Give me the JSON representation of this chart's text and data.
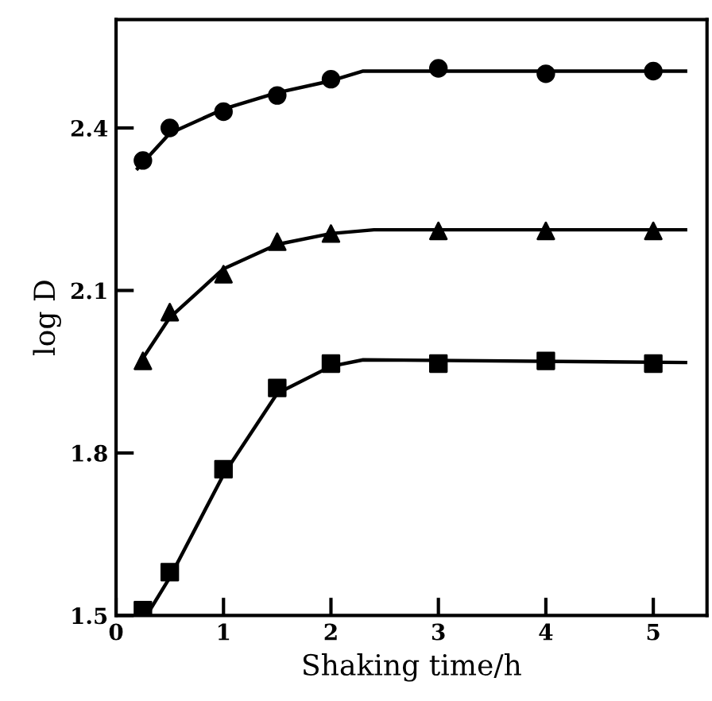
{
  "chart_data": {
    "type": "scatter",
    "xlabel": "Shaking time/h",
    "ylabel": "log D",
    "xlim": [
      0,
      5.5
    ],
    "ylim": [
      1.5,
      2.6
    ],
    "xticks": [
      0,
      1,
      2,
      3,
      4,
      5
    ],
    "yticks": [
      1.5,
      1.8,
      2.1,
      2.4
    ],
    "grid": false,
    "legend": false,
    "series": [
      {
        "marker": "circle",
        "color": "#000000",
        "x": [
          0.25,
          0.5,
          1,
          1.5,
          2,
          3,
          4,
          5
        ],
        "values": [
          2.34,
          2.4,
          2.43,
          2.46,
          2.49,
          2.51,
          2.5,
          2.505
        ]
      },
      {
        "marker": "triangle",
        "color": "#000000",
        "x": [
          0.25,
          0.5,
          1,
          1.5,
          2,
          3,
          4,
          5
        ],
        "values": [
          1.97,
          2.06,
          2.13,
          2.19,
          2.205,
          2.21,
          2.21,
          2.21
        ]
      },
      {
        "marker": "square",
        "color": "#000000",
        "x": [
          0.25,
          0.5,
          1,
          1.5,
          2,
          3,
          4,
          5
        ],
        "values": [
          1.51,
          1.58,
          1.77,
          1.92,
          1.965,
          1.965,
          1.97,
          1.965
        ]
      },
      {
        "type": "line",
        "line_style": "solid",
        "color": "#000000",
        "x": [
          0.2,
          0.5,
          1,
          1.5,
          2,
          2.3,
          5.3
        ],
        "values": [
          2.325,
          2.39,
          2.435,
          2.465,
          2.487,
          2.505,
          2.505
        ]
      },
      {
        "type": "line",
        "line_style": "solid",
        "color": "#000000",
        "x": [
          0.2,
          0.5,
          1,
          1.5,
          2,
          2.4,
          5.3
        ],
        "values": [
          1.96,
          2.05,
          2.14,
          2.185,
          2.205,
          2.212,
          2.212
        ]
      },
      {
        "type": "line",
        "line_style": "solid",
        "color": "#000000",
        "x": [
          0.3,
          0.5,
          1,
          1.5,
          2,
          2.3,
          5.3
        ],
        "values": [
          1.505,
          1.57,
          1.76,
          1.91,
          1.96,
          1.972,
          1.967
        ]
      }
    ]
  }
}
